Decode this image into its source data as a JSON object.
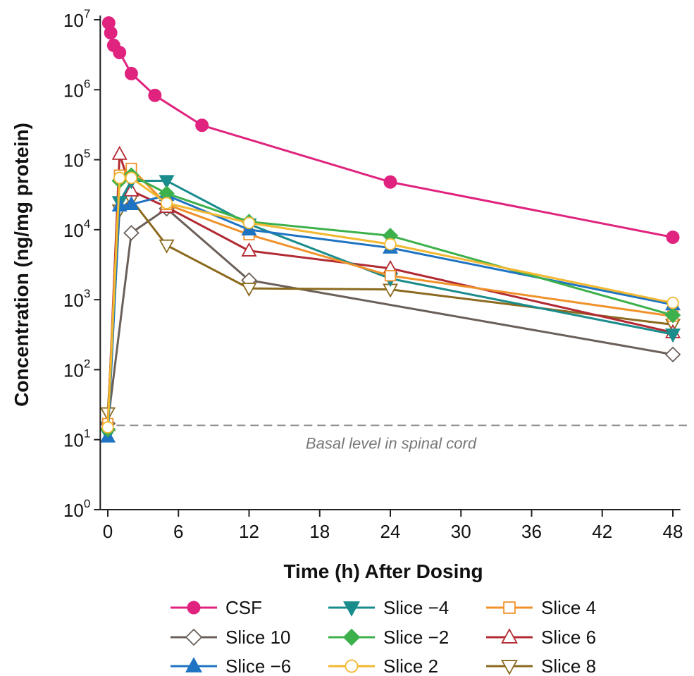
{
  "chart_data": {
    "type": "line",
    "xlabel": "Time (h) After Dosing",
    "ylabel": "Concentration (ng/mg protein)",
    "x_ticks": [
      0,
      6,
      12,
      18,
      24,
      30,
      36,
      42,
      48
    ],
    "xlim": [
      -1,
      49
    ],
    "yscale": "log",
    "ylim": [
      1,
      10000000
    ],
    "y_ticks": [
      {
        "value": 1,
        "base": "10",
        "exp": "0"
      },
      {
        "value": 10,
        "base": "10",
        "exp": "1"
      },
      {
        "value": 100,
        "base": "10",
        "exp": "2"
      },
      {
        "value": 1000,
        "base": "10",
        "exp": "3"
      },
      {
        "value": 10000,
        "base": "10",
        "exp": "4"
      },
      {
        "value": 100000,
        "base": "10",
        "exp": "5"
      },
      {
        "value": 1000000,
        "base": "10",
        "exp": "6"
      },
      {
        "value": 10000000,
        "base": "10",
        "exp": "7"
      }
    ],
    "grid": false,
    "legend_position": "bottom",
    "reference_line": {
      "y": 16,
      "label": "Basal level in spinal cord"
    },
    "series": [
      {
        "name": "Slice 10",
        "color": "#6b6059",
        "marker": "diamond",
        "filled": false,
        "x": [
          0,
          2,
          5,
          12,
          48
        ],
        "y": [
          17,
          9000,
          20000,
          1900,
          165
        ]
      },
      {
        "name": "Slice 8",
        "color": "#8b6a1e",
        "marker": "triangle-down",
        "filled": false,
        "x": [
          0,
          1,
          2,
          5,
          12,
          24,
          48
        ],
        "y": [
          24,
          19000,
          27000,
          6000,
          1450,
          1400,
          440
        ]
      },
      {
        "name": "Slice 6",
        "color": "#b22a33",
        "marker": "triangle-up",
        "filled": false,
        "x": [
          0,
          1,
          2,
          5,
          12,
          24,
          48
        ],
        "y": [
          16,
          120000,
          36000,
          21000,
          5000,
          2800,
          340
        ]
      },
      {
        "name": "Slice −4",
        "color": "#1a8c8c",
        "marker": "triangle-down",
        "filled": true,
        "x": [
          0,
          1,
          2,
          5,
          12,
          24,
          48
        ],
        "y": [
          12,
          25000,
          50000,
          50000,
          12000,
          2000,
          320
        ]
      },
      {
        "name": "Slice 4",
        "color": "#f0922b",
        "marker": "square",
        "filled": false,
        "x": [
          0,
          1,
          2,
          5,
          12,
          24,
          48
        ],
        "y": [
          17,
          60000,
          75000,
          23000,
          8500,
          2200,
          580
        ]
      },
      {
        "name": "Slice −6",
        "color": "#1e73c2",
        "marker": "triangle-up",
        "filled": true,
        "x": [
          0,
          1,
          2,
          5,
          12,
          24,
          48
        ],
        "y": [
          11,
          22000,
          23000,
          31000,
          10000,
          5500,
          850
        ]
      },
      {
        "name": "Slice −2",
        "color": "#3cb04b",
        "marker": "diamond",
        "filled": true,
        "x": [
          0,
          1,
          2,
          5,
          12,
          24,
          48
        ],
        "y": [
          14,
          50000,
          60000,
          33000,
          13000,
          8200,
          600
        ]
      },
      {
        "name": "Slice 2",
        "color": "#f2b830",
        "marker": "circle",
        "filled": false,
        "x": [
          0,
          1,
          2,
          5,
          12,
          24,
          48
        ],
        "y": [
          15,
          55000,
          55000,
          24000,
          12500,
          6200,
          900
        ]
      },
      {
        "name": "CSF",
        "color": "#e0237e",
        "marker": "circle",
        "filled": true,
        "x": [
          0.08,
          0.25,
          0.5,
          1,
          2,
          4,
          8,
          24,
          48
        ],
        "y": [
          9000000,
          6500000,
          4300000,
          3400000,
          1700000,
          830000,
          310000,
          48000,
          7800
        ]
      }
    ],
    "legend_order": [
      "CSF",
      "Slice −4",
      "Slice 4",
      "Slice 10",
      "Slice −2",
      "Slice 6",
      "Slice −6",
      "Slice 2",
      "Slice 8"
    ]
  }
}
